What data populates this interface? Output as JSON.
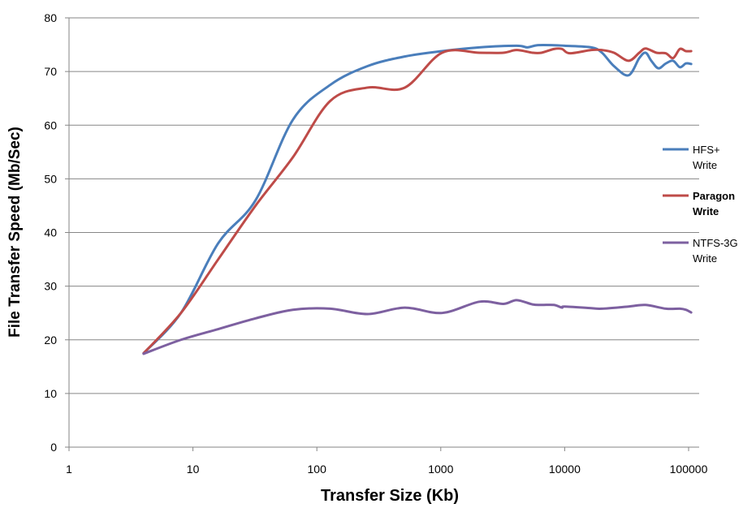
{
  "chart_data": {
    "type": "line",
    "xscale": "log",
    "xlim": [
      1,
      100000
    ],
    "ylim": [
      0,
      80
    ],
    "xlabel": "Transfer Size (Kb)",
    "ylabel": "File Transfer Speed (Mb/Sec)",
    "x_ticks": [
      "1",
      "10",
      "100",
      "1000",
      "10000",
      "100000"
    ],
    "y_ticks": [
      "0",
      "10",
      "20",
      "30",
      "40",
      "50",
      "60",
      "70",
      "80"
    ],
    "grid": "horizontal",
    "legend_position": "right",
    "series": [
      {
        "name_lines": [
          "HFS+",
          "Write"
        ],
        "color": "#4A7EBB",
        "points": [
          [
            4,
            17.5
          ],
          [
            8,
            25
          ],
          [
            16,
            38
          ],
          [
            32,
            46
          ],
          [
            64,
            61
          ],
          [
            128,
            67.5
          ],
          [
            256,
            71
          ],
          [
            512,
            72.8
          ],
          [
            1024,
            73.8
          ],
          [
            2048,
            74.5
          ],
          [
            4096,
            74.8
          ],
          [
            5000,
            74.5
          ],
          [
            6000,
            74.9
          ],
          [
            8192,
            74.9
          ],
          [
            10000,
            74.8
          ],
          [
            16384,
            74.5
          ],
          [
            20000,
            73.5
          ],
          [
            25000,
            71
          ],
          [
            32768,
            69.3
          ],
          [
            40000,
            72.5
          ],
          [
            45000,
            73.5
          ],
          [
            50000,
            72
          ],
          [
            57000,
            70.6
          ],
          [
            65536,
            71.5
          ],
          [
            75000,
            72
          ],
          [
            85000,
            70.8
          ],
          [
            95000,
            71.5
          ],
          [
            104857,
            71.4
          ]
        ]
      },
      {
        "name_lines": [
          "Paragon",
          "Write"
        ],
        "bold": true,
        "color": "#BE4B48",
        "points": [
          [
            4,
            17.5
          ],
          [
            8,
            25
          ],
          [
            16,
            35
          ],
          [
            32,
            45
          ],
          [
            64,
            54
          ],
          [
            128,
            64.5
          ],
          [
            256,
            67
          ],
          [
            512,
            67
          ],
          [
            1024,
            73.5
          ],
          [
            2048,
            73.5
          ],
          [
            3200,
            73.5
          ],
          [
            4096,
            74
          ],
          [
            5500,
            73.5
          ],
          [
            6500,
            73.5
          ],
          [
            8192,
            74.2
          ],
          [
            9500,
            74.2
          ],
          [
            11000,
            73.4
          ],
          [
            16384,
            74
          ],
          [
            20000,
            74
          ],
          [
            25000,
            73.5
          ],
          [
            32768,
            72
          ],
          [
            40000,
            73.5
          ],
          [
            45000,
            74.3
          ],
          [
            55000,
            73.5
          ],
          [
            65536,
            73.4
          ],
          [
            75000,
            72.5
          ],
          [
            85000,
            74.2
          ],
          [
            95000,
            73.8
          ],
          [
            104857,
            73.8
          ]
        ]
      },
      {
        "name_lines": [
          "NTFS-3G",
          "Write"
        ],
        "color": "#7D60A0",
        "points": [
          [
            4,
            17.4
          ],
          [
            8,
            20
          ],
          [
            16,
            22
          ],
          [
            32,
            24
          ],
          [
            64,
            25.6
          ],
          [
            128,
            25.8
          ],
          [
            256,
            24.8
          ],
          [
            512,
            26
          ],
          [
            1024,
            25
          ],
          [
            2048,
            27.1
          ],
          [
            3200,
            26.7
          ],
          [
            4096,
            27.4
          ],
          [
            5500,
            26.6
          ],
          [
            6500,
            26.5
          ],
          [
            8192,
            26.5
          ],
          [
            9500,
            26
          ],
          [
            10000,
            26.2
          ],
          [
            16384,
            25.9
          ],
          [
            20000,
            25.8
          ],
          [
            32768,
            26.2
          ],
          [
            45000,
            26.5
          ],
          [
            65536,
            25.8
          ],
          [
            85000,
            25.8
          ],
          [
            95000,
            25.6
          ],
          [
            104857,
            25.1
          ]
        ]
      }
    ]
  }
}
